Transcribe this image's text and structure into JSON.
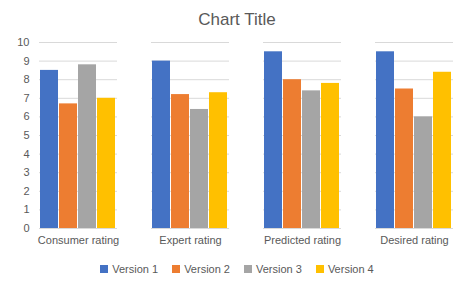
{
  "chart_data": {
    "type": "bar",
    "title": "Chart Title",
    "categories": [
      "Consumer rating",
      "Expert rating",
      "Predicted rating",
      "Desired rating"
    ],
    "series": [
      {
        "name": "Version 1",
        "color": "#4472c4",
        "values": [
          8.5,
          9.0,
          9.5,
          9.5
        ]
      },
      {
        "name": "Version 2",
        "color": "#ed7d31",
        "values": [
          6.7,
          7.2,
          8.0,
          7.5
        ]
      },
      {
        "name": "Version 3",
        "color": "#a5a5a5",
        "values": [
          8.8,
          6.4,
          7.4,
          6.0
        ]
      },
      {
        "name": "Version 4",
        "color": "#ffc000",
        "values": [
          7.0,
          7.3,
          7.8,
          8.4
        ]
      }
    ],
    "ylim": [
      0,
      10
    ],
    "yticks": [
      0,
      1,
      2,
      3,
      4,
      5,
      6,
      7,
      8,
      9,
      10
    ],
    "grid": true,
    "legend": "bottom"
  }
}
